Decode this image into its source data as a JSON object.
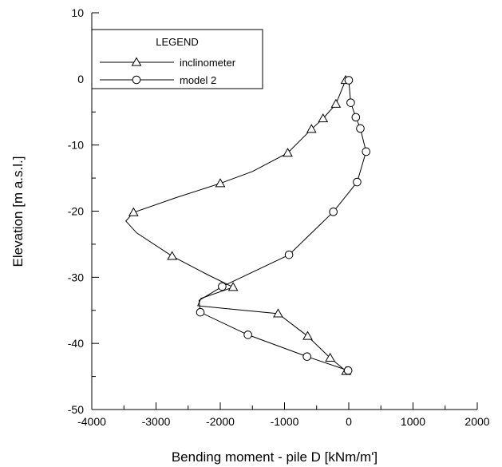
{
  "chart_data": {
    "type": "line",
    "title": "",
    "xlabel": "Bending moment - pile D [kNm/m']",
    "ylabel": "Elevation [m a.s.l.]",
    "xlim": [
      -4000,
      2000
    ],
    "ylim": [
      -50,
      10
    ],
    "xticks": [
      -4000,
      -3000,
      -2000,
      -1000,
      0,
      1000,
      2000
    ],
    "yticks": [
      -50,
      -40,
      -30,
      -20,
      -10,
      0,
      10
    ],
    "grid": false,
    "legend": {
      "title": "LEGEND",
      "placement": "top-left"
    },
    "series": [
      {
        "name": "inclinometer",
        "marker": "triangle",
        "color": "#000000",
        "curve": [
          {
            "x": -50,
            "y": -0.2
          },
          {
            "x": -200,
            "y": -3.8
          },
          {
            "x": -400,
            "y": -6.0
          },
          {
            "x": -580,
            "y": -7.6
          },
          {
            "x": -950,
            "y": -11.2
          },
          {
            "x": -1500,
            "y": -14.0
          },
          {
            "x": -2000,
            "y": -15.8
          },
          {
            "x": -2700,
            "y": -18.0
          },
          {
            "x": -3350,
            "y": -20.2
          },
          {
            "x": -3470,
            "y": -21.5
          },
          {
            "x": -3300,
            "y": -23.3
          },
          {
            "x": -2750,
            "y": -26.8
          },
          {
            "x": -2200,
            "y": -29.6
          },
          {
            "x": -1800,
            "y": -31.5
          },
          {
            "x": -2300,
            "y": -33.2
          },
          {
            "x": -2350,
            "y": -34.3
          },
          {
            "x": -1950,
            "y": -34.7
          },
          {
            "x": -1100,
            "y": -35.5
          },
          {
            "x": -640,
            "y": -38.9
          },
          {
            "x": -290,
            "y": -42.2
          },
          {
            "x": -40,
            "y": -44.2
          }
        ],
        "markers": [
          {
            "x": -50,
            "y": -0.2
          },
          {
            "x": -200,
            "y": -3.8
          },
          {
            "x": -400,
            "y": -6.0
          },
          {
            "x": -580,
            "y": -7.6
          },
          {
            "x": -950,
            "y": -11.2
          },
          {
            "x": -2000,
            "y": -15.8
          },
          {
            "x": -3350,
            "y": -20.2
          },
          {
            "x": -2750,
            "y": -26.8
          },
          {
            "x": -1800,
            "y": -31.5
          },
          {
            "x": -1100,
            "y": -35.5
          },
          {
            "x": -640,
            "y": -38.9
          },
          {
            "x": -290,
            "y": -42.2
          },
          {
            "x": -40,
            "y": -44.2
          }
        ]
      },
      {
        "name": "model 2",
        "marker": "circle",
        "color": "#000000",
        "curve": [
          {
            "x": 0,
            "y": -0.2
          },
          {
            "x": 30,
            "y": -3.6
          },
          {
            "x": 110,
            "y": -5.8
          },
          {
            "x": 180,
            "y": -7.5
          },
          {
            "x": 270,
            "y": -11.0
          },
          {
            "x": 130,
            "y": -15.6
          },
          {
            "x": -240,
            "y": -20.1
          },
          {
            "x": -930,
            "y": -26.6
          },
          {
            "x": -1970,
            "y": -31.4
          },
          {
            "x": -2330,
            "y": -33.5
          },
          {
            "x": -2310,
            "y": -35.3
          },
          {
            "x": -1570,
            "y": -38.7
          },
          {
            "x": -650,
            "y": -42.0
          },
          {
            "x": -10,
            "y": -44.1
          }
        ],
        "markers": [
          {
            "x": 0,
            "y": -0.2
          },
          {
            "x": 30,
            "y": -3.6
          },
          {
            "x": 110,
            "y": -5.8
          },
          {
            "x": 180,
            "y": -7.5
          },
          {
            "x": 270,
            "y": -11.0
          },
          {
            "x": 130,
            "y": -15.6
          },
          {
            "x": -240,
            "y": -20.1
          },
          {
            "x": -930,
            "y": -26.6
          },
          {
            "x": -1970,
            "y": -31.4
          },
          {
            "x": -2310,
            "y": -35.3
          },
          {
            "x": -1570,
            "y": -38.7
          },
          {
            "x": -650,
            "y": -42.0
          },
          {
            "x": -10,
            "y": -44.1
          }
        ]
      }
    ]
  }
}
